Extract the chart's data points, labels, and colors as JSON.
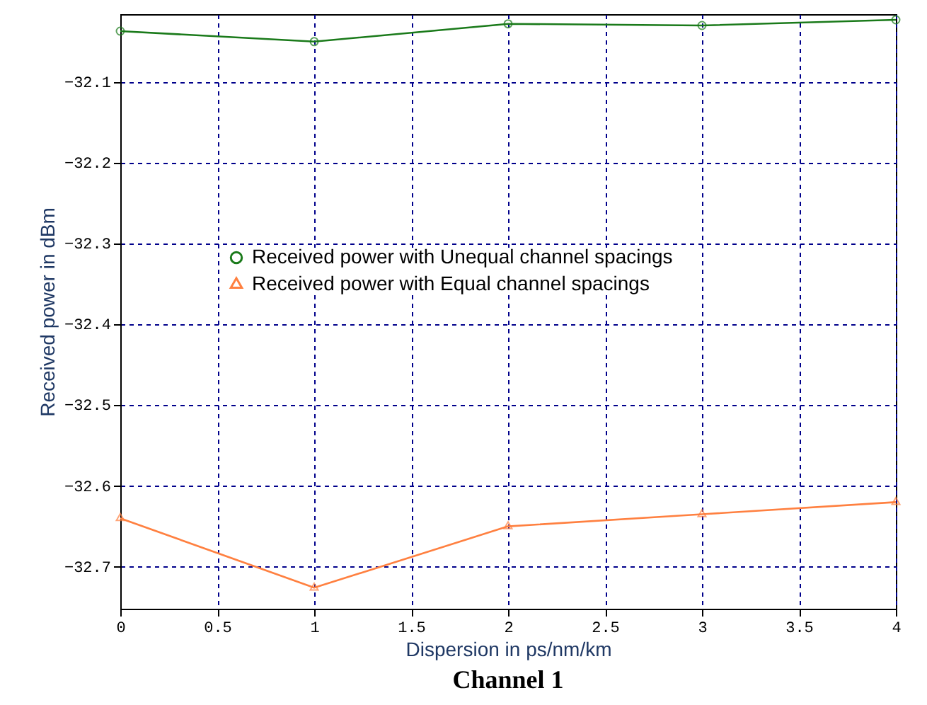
{
  "chart_data": {
    "type": "line",
    "title": "Channel 1",
    "xlabel": "Dispersion in ps/nm/km",
    "ylabel": "Received power in dBm",
    "x": [
      0,
      1,
      2,
      3,
      4
    ],
    "series": [
      {
        "name": "Received power with Unequal channel spacings",
        "color": "#1a7a1a",
        "marker": "circle",
        "values": [
          -32.037,
          -32.05,
          -32.028,
          -32.03,
          -32.023
        ]
      },
      {
        "name": "Received power with Equal channel spacings",
        "color": "#ff8040",
        "marker": "triangle",
        "values": [
          -32.64,
          -32.726,
          -32.65,
          -32.635,
          -32.62
        ]
      }
    ],
    "xlim": [
      0,
      4
    ],
    "xticks": [
      0,
      0.5,
      1,
      1.5,
      2,
      2.5,
      3,
      3.5,
      4
    ],
    "ylim": [
      -32.752,
      -32.016
    ],
    "yticks": [
      -32.1,
      -32.2,
      -32.3,
      -32.4,
      -32.5,
      -32.6,
      -32.7
    ],
    "grid": true,
    "legend": "left",
    "line_style": "solid"
  }
}
